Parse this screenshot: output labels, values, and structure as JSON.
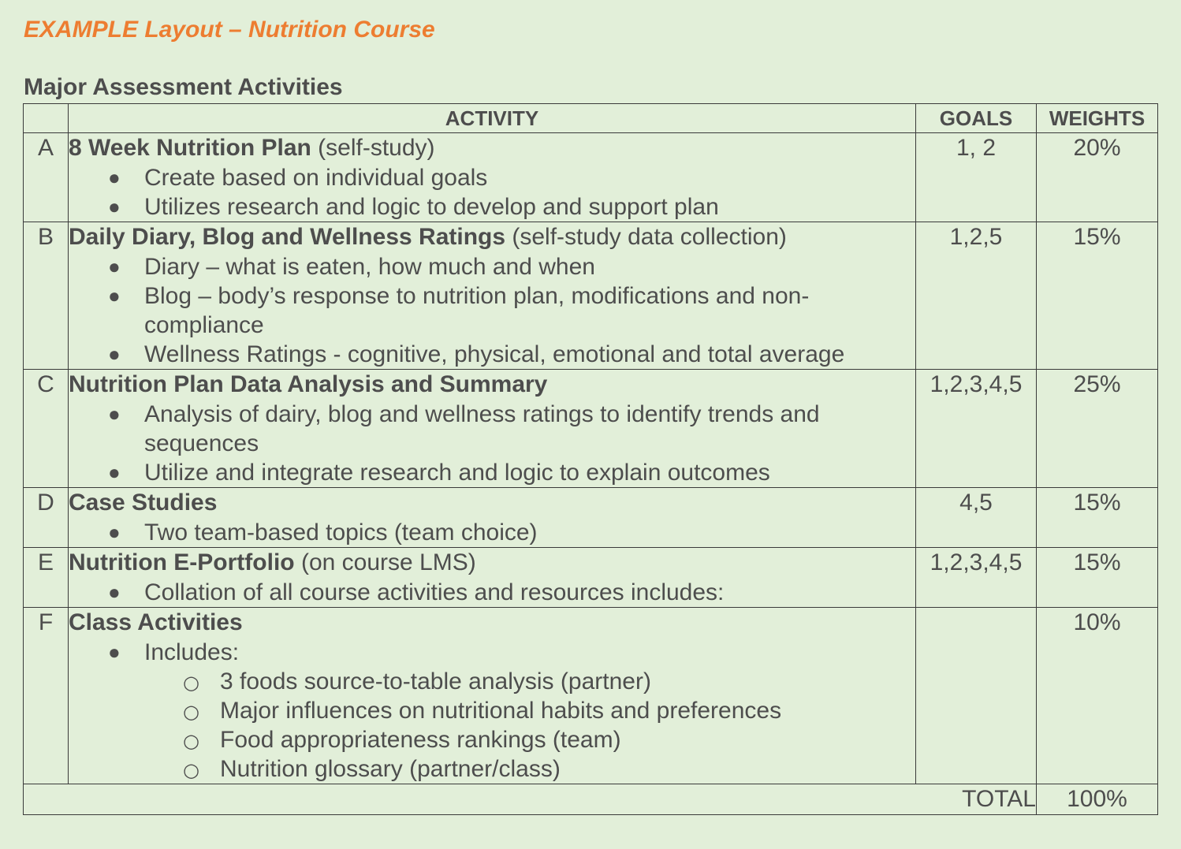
{
  "doc": {
    "title": "EXAMPLE Layout – Nutrition Course",
    "section_heading": "Major Assessment Activities",
    "accent_color": "#ed7d31",
    "background_color": "#e2efd9"
  },
  "table": {
    "headers": {
      "activity": "ACTIVITY",
      "goals": "GOALS",
      "weights": "WEIGHTS"
    },
    "rows": [
      {
        "letter": "A",
        "title_bold": "8 Week Nutrition Plan",
        "title_rest": " (self-study)",
        "goals": "1, 2",
        "weight": "20%",
        "bullets": [
          "Create based on individual goals",
          "Utilizes research and logic to develop and support plan"
        ]
      },
      {
        "letter": "B",
        "title_bold": "Daily Diary, Blog and Wellness Ratings",
        "title_rest": " (self-study data collection)",
        "goals": "1,2,5",
        "weight": "15%",
        "bullets": [
          "Diary – what is eaten, how much and when",
          "Blog – body’s response to nutrition plan, modifications and non-compliance",
          "Wellness Ratings - cognitive, physical, emotional and total average"
        ]
      },
      {
        "letter": "C",
        "title_bold": "Nutrition Plan Data Analysis and Summary",
        "title_rest": "",
        "goals": "1,2,3,4,5",
        "weight": "25%",
        "bullets": [
          "Analysis of dairy, blog and wellness ratings to identify trends and sequences",
          "Utilize and integrate research and logic to explain outcomes"
        ]
      },
      {
        "letter": "D",
        "title_bold": "Case Studies",
        "title_rest": "",
        "goals": "4,5",
        "weight": "15%",
        "bullets": [
          "Two team-based topics (team choice)"
        ]
      },
      {
        "letter": "E",
        "title_bold": "Nutrition E-Portfolio",
        "title_rest": " (on course LMS)",
        "goals": "1,2,3,4,5",
        "weight": "15%",
        "bullets": [
          "Collation of all course activities and resources includes:"
        ]
      },
      {
        "letter": "F",
        "title_bold": "Class Activities",
        "title_rest": "",
        "goals": "",
        "weight": "10%",
        "bullets": [
          "Includes:"
        ],
        "sub_bullets": [
          "3 foods source-to-table analysis (partner)",
          "Major influences on nutritional habits and preferences",
          "Food appropriateness rankings (team)",
          "Nutrition glossary (partner/class)"
        ]
      }
    ],
    "total": {
      "label": "TOTAL",
      "value": "100%"
    }
  }
}
